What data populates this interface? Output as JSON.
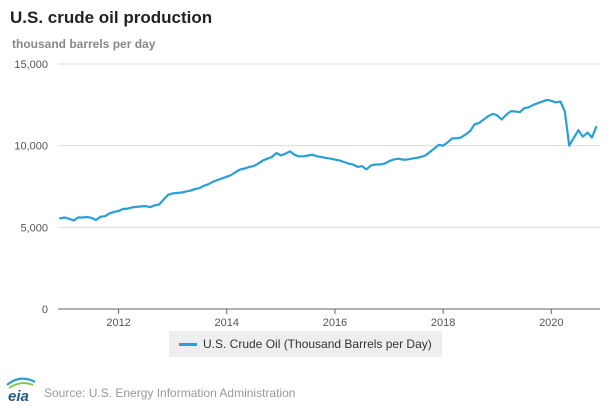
{
  "header": {
    "title": "U.S. crude oil production",
    "subtitle": "thousand barrels per day"
  },
  "legend": {
    "label": "U.S. Crude Oil (Thousand Barrels per Day)"
  },
  "footer": {
    "source": "Source: U.S. Energy Information Administration",
    "logo_text": "eia"
  },
  "colors": {
    "series": "#2a9fd6",
    "grid": "#dddddd",
    "axis": "#666666"
  },
  "chart_data": {
    "type": "line",
    "title": "U.S. crude oil production",
    "ylabel": "thousand barrels per day",
    "xlabel": "",
    "ylim": [
      0,
      15000
    ],
    "xlim": [
      2010.88,
      2020.9
    ],
    "yticks": [
      0,
      5000,
      10000,
      15000
    ],
    "ytick_labels": [
      "0",
      "5,000",
      "10,000",
      "15,000"
    ],
    "xticks": [
      2012,
      2014,
      2016,
      2018,
      2020
    ],
    "xtick_labels": [
      "2012",
      "2014",
      "2016",
      "2018",
      "2020"
    ],
    "grid": "horizontal",
    "legend_position": "bottom",
    "series": [
      {
        "name": "U.S. Crude Oil (Thousand Barrels per Day)",
        "x": [
          2010.92,
          2011.0,
          2011.08,
          2011.17,
          2011.25,
          2011.33,
          2011.42,
          2011.5,
          2011.58,
          2011.67,
          2011.75,
          2011.83,
          2011.92,
          2012.0,
          2012.08,
          2012.17,
          2012.25,
          2012.33,
          2012.42,
          2012.5,
          2012.58,
          2012.67,
          2012.75,
          2012.83,
          2012.92,
          2013.0,
          2013.08,
          2013.17,
          2013.25,
          2013.33,
          2013.42,
          2013.5,
          2013.58,
          2013.67,
          2013.75,
          2013.83,
          2013.92,
          2014.0,
          2014.08,
          2014.17,
          2014.25,
          2014.33,
          2014.42,
          2014.5,
          2014.58,
          2014.67,
          2014.75,
          2014.83,
          2014.92,
          2015.0,
          2015.08,
          2015.17,
          2015.25,
          2015.33,
          2015.42,
          2015.5,
          2015.58,
          2015.67,
          2015.75,
          2015.83,
          2015.92,
          2016.0,
          2016.08,
          2016.17,
          2016.25,
          2016.33,
          2016.42,
          2016.5,
          2016.58,
          2016.67,
          2016.75,
          2016.83,
          2016.92,
          2017.0,
          2017.08,
          2017.17,
          2017.25,
          2017.33,
          2017.42,
          2017.5,
          2017.58,
          2017.67,
          2017.75,
          2017.83,
          2017.92,
          2018.0,
          2018.08,
          2018.17,
          2018.25,
          2018.33,
          2018.42,
          2018.5,
          2018.58,
          2018.67,
          2018.75,
          2018.83,
          2018.92,
          2019.0,
          2019.08,
          2019.17,
          2019.25,
          2019.33,
          2019.42,
          2019.5,
          2019.58,
          2019.67,
          2019.75,
          2019.83,
          2019.92,
          2020.0,
          2020.08,
          2020.17,
          2020.25,
          2020.33,
          2020.42,
          2020.5,
          2020.58,
          2020.67,
          2020.75,
          2020.83
        ],
        "values": [
          5550,
          5600,
          5530,
          5420,
          5600,
          5600,
          5630,
          5580,
          5450,
          5650,
          5680,
          5850,
          5950,
          6000,
          6120,
          6150,
          6220,
          6250,
          6280,
          6300,
          6230,
          6350,
          6400,
          6700,
          7000,
          7080,
          7100,
          7130,
          7200,
          7250,
          7350,
          7400,
          7550,
          7650,
          7800,
          7900,
          8000,
          8100,
          8200,
          8400,
          8550,
          8600,
          8700,
          8750,
          8900,
          9100,
          9200,
          9300,
          9550,
          9400,
          9500,
          9650,
          9450,
          9350,
          9350,
          9400,
          9450,
          9350,
          9300,
          9250,
          9200,
          9150,
          9100,
          9000,
          8900,
          8850,
          8700,
          8750,
          8550,
          8800,
          8850,
          8850,
          8900,
          9050,
          9150,
          9200,
          9150,
          9150,
          9200,
          9250,
          9300,
          9400,
          9600,
          9800,
          10050,
          10000,
          10200,
          10450,
          10450,
          10500,
          10700,
          10900,
          11300,
          11400,
          11600,
          11800,
          11950,
          11850,
          11600,
          11900,
          12100,
          12100,
          12050,
          12300,
          12350,
          12500,
          12600,
          12700,
          12800,
          12750,
          12650,
          12700,
          12100,
          10000,
          10500,
          10950,
          10550,
          10800,
          10500,
          11150
        ]
      }
    ]
  }
}
